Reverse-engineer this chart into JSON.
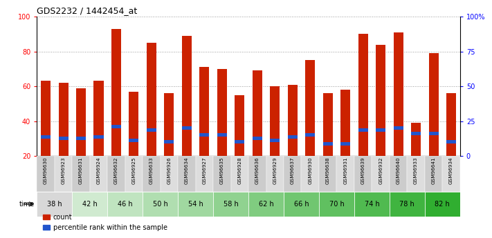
{
  "title": "GDS2232 / 1442454_at",
  "samples": [
    "GSM96630",
    "GSM96923",
    "GSM96631",
    "GSM96924",
    "GSM96632",
    "GSM96925",
    "GSM96633",
    "GSM96926",
    "GSM96634",
    "GSM96927",
    "GSM96635",
    "GSM96928",
    "GSM96636",
    "GSM96929",
    "GSM96637",
    "GSM96930",
    "GSM96638",
    "GSM96931",
    "GSM96639",
    "GSM96932",
    "GSM96640",
    "GSM96933",
    "GSM96641",
    "GSM96934"
  ],
  "time_groups": [
    {
      "label": "38 h",
      "start": 0,
      "end": 2,
      "color": "#d8d8d8"
    },
    {
      "label": "42 h",
      "start": 2,
      "end": 4,
      "color": "#d0ead0"
    },
    {
      "label": "46 h",
      "start": 4,
      "end": 6,
      "color": "#c0e4c0"
    },
    {
      "label": "50 h",
      "start": 6,
      "end": 8,
      "color": "#b0deb0"
    },
    {
      "label": "54 h",
      "start": 8,
      "end": 10,
      "color": "#a0d8a0"
    },
    {
      "label": "58 h",
      "start": 10,
      "end": 12,
      "color": "#90d290"
    },
    {
      "label": "62 h",
      "start": 12,
      "end": 14,
      "color": "#80cc80"
    },
    {
      "label": "66 h",
      "start": 14,
      "end": 16,
      "color": "#70c670"
    },
    {
      "label": "70 h",
      "start": 16,
      "end": 18,
      "color": "#60c060"
    },
    {
      "label": "74 h",
      "start": 18,
      "end": 20,
      "color": "#50ba50"
    },
    {
      "label": "78 h",
      "start": 20,
      "end": 22,
      "color": "#40b440"
    },
    {
      "label": "82 h",
      "start": 22,
      "end": 24,
      "color": "#30ae30"
    }
  ],
  "count_values": [
    63,
    62,
    59,
    63,
    93,
    57,
    85,
    56,
    89,
    71,
    70,
    55,
    69,
    60,
    61,
    75,
    56,
    58,
    90,
    84,
    91,
    39,
    79,
    56
  ],
  "percentile_values": [
    31,
    30,
    30,
    31,
    37,
    29,
    35,
    28,
    36,
    32,
    32,
    28,
    30,
    29,
    31,
    32,
    27,
    27,
    35,
    35,
    36,
    33,
    33,
    28
  ],
  "bar_color": "#cc2200",
  "blue_color": "#2255cc",
  "ylim_left": [
    20,
    100
  ],
  "ylim_right_ticks": [
    0,
    25,
    50,
    75,
    100
  ],
  "ylim_right_labels": [
    "0",
    "25",
    "50",
    "75",
    "100%"
  ],
  "left_ticks": [
    20,
    40,
    60,
    80,
    100
  ],
  "legend_count": "count",
  "legend_pct": "percentile rank within the sample"
}
